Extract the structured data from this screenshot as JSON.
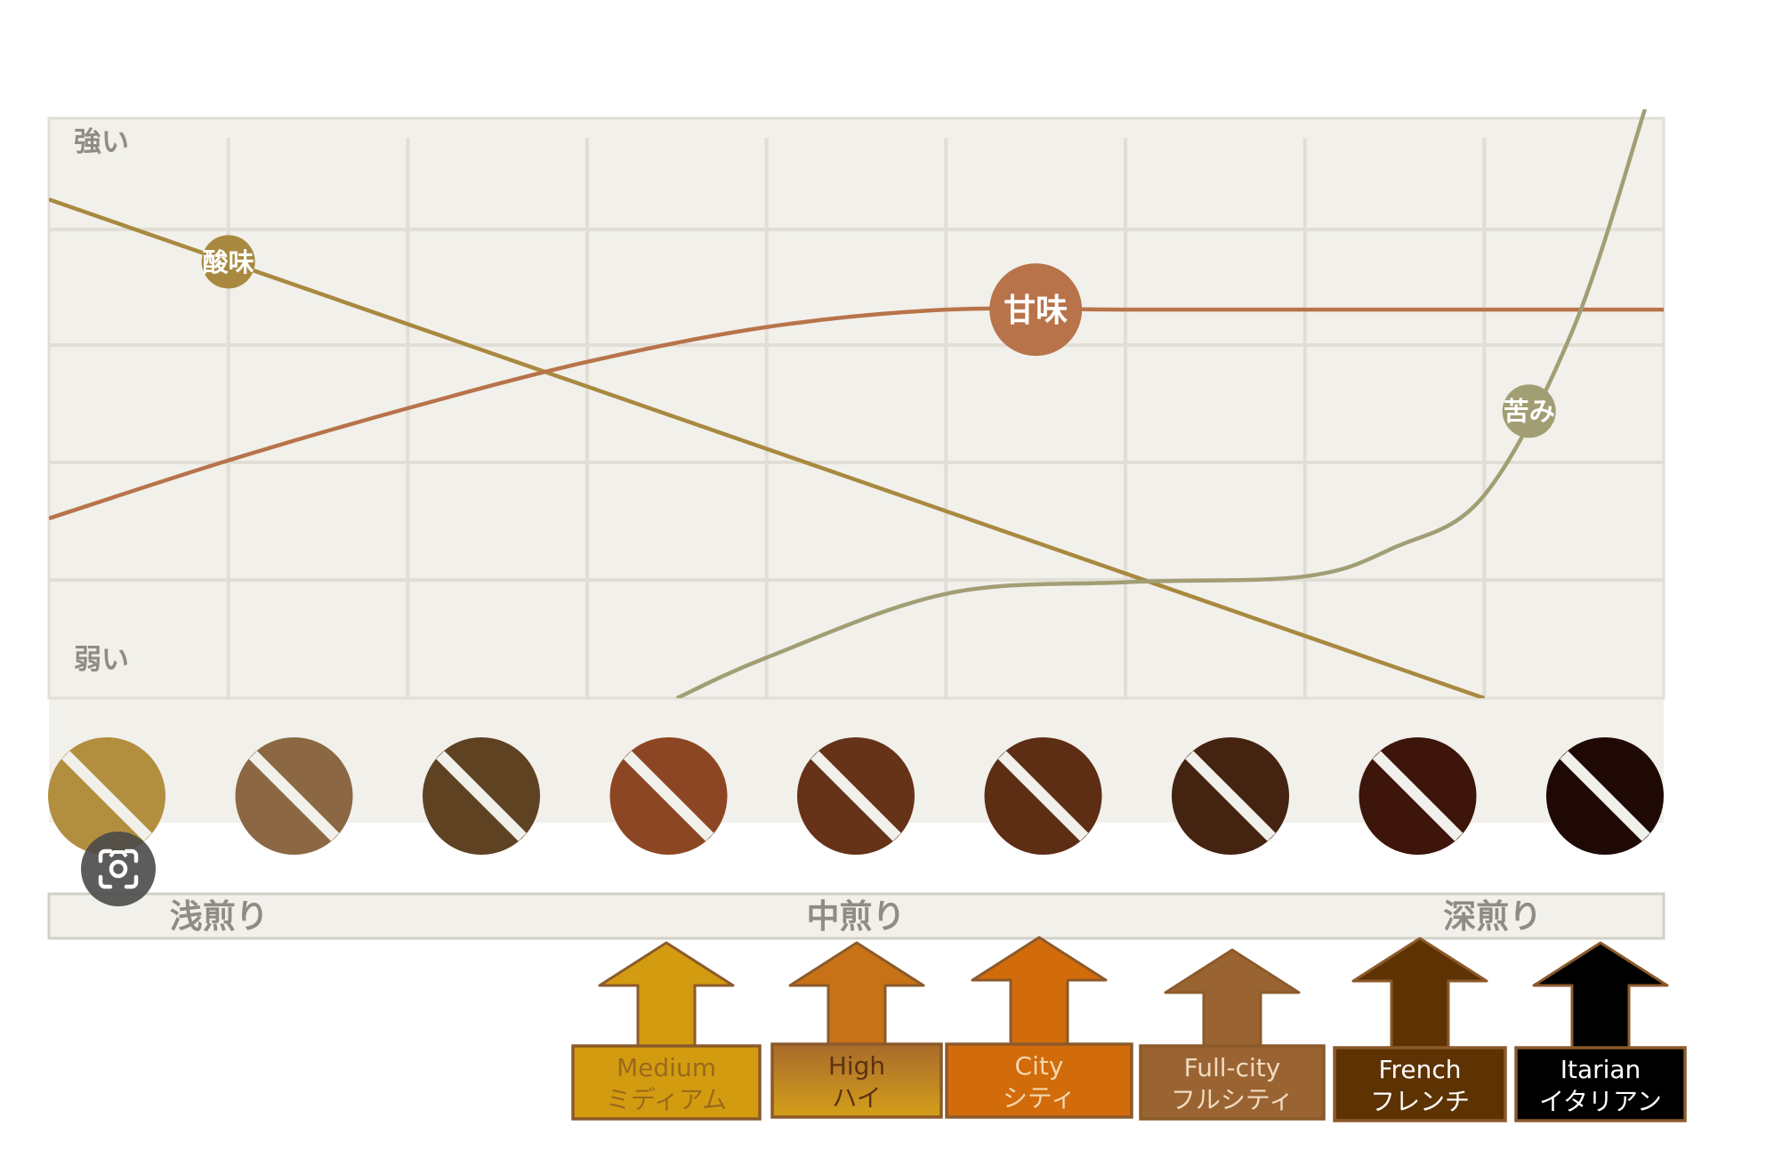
{
  "chart_data": {
    "type": "line",
    "x_categories_count": 9,
    "y_axis": {
      "top_label": "強い",
      "bottom_label": "弱い",
      "ylim": [
        0,
        5
      ]
    },
    "series": [
      {
        "name": "酸味",
        "color": "#a8893f",
        "x": [
          0,
          8.0
        ],
        "y": [
          4.3,
          0.0
        ],
        "label_at_x": 1.0
      },
      {
        "name": "甘味",
        "color": "#b8734a",
        "x": [
          0,
          1,
          2,
          3,
          4,
          5,
          6,
          7,
          8,
          9
        ],
        "y": [
          1.55,
          2.05,
          2.5,
          2.9,
          3.2,
          3.35,
          3.35,
          3.35,
          3.35,
          3.35
        ],
        "label_at_x": 5.5
      },
      {
        "name": "苦み",
        "color": "#a29e74",
        "x": [
          3.5,
          4.0,
          5.0,
          6.0,
          7.0,
          7.5,
          8.0,
          8.5,
          8.9
        ],
        "y": [
          0.0,
          0.35,
          0.9,
          1.0,
          1.05,
          1.3,
          1.75,
          3.2,
          5.1
        ],
        "label_at_x": 8.25
      }
    ],
    "beans": [
      {
        "color": "#b28f3f"
      },
      {
        "color": "#8b6843"
      },
      {
        "color": "#5e4222"
      },
      {
        "color": "#8d4623"
      },
      {
        "color": "#663318"
      },
      {
        "color": "#5e2e14"
      },
      {
        "color": "#442411"
      },
      {
        "color": "#3d150b"
      },
      {
        "color": "#1f0904"
      }
    ],
    "roast_levels": [
      {
        "text": "浅煎り",
        "at_bean": 0.6
      },
      {
        "text": "中煎り",
        "at_bean": 4.0
      },
      {
        "text": "深煎り",
        "at_bean": 7.4
      }
    ],
    "roast_names": [
      {
        "en": "Medium",
        "ja": "ミディアム",
        "fill": "#d39c10",
        "text_color": "#9a6a1a"
      },
      {
        "en": "High",
        "ja": "ハイ",
        "fill": "#c77216",
        "box_gradient": [
          "#a86a2c",
          "#d4a019"
        ],
        "text_color": "#5c3312"
      },
      {
        "en": "City",
        "ja": "シティ",
        "fill": "#d26b0a",
        "text_color": "#f3d8b0"
      },
      {
        "en": "Full-city",
        "ja": "フルシティ",
        "fill": "#9a6332",
        "text_color": "#f0dcc0"
      },
      {
        "en": "French",
        "ja": "フレンチ",
        "fill": "#5e3304",
        "text_color": "#ffffff"
      },
      {
        "en": "Itarian",
        "ja": "イタリアン",
        "fill": "#000000",
        "text_color": "#ffffff"
      }
    ]
  },
  "colors": {
    "chart_bg": "#f1f0eb",
    "grid": "#e1ded6",
    "axis_text": "#8f8c86",
    "arrow_outline": "#8b5a2b"
  },
  "lens_icon": "camera-search-icon"
}
